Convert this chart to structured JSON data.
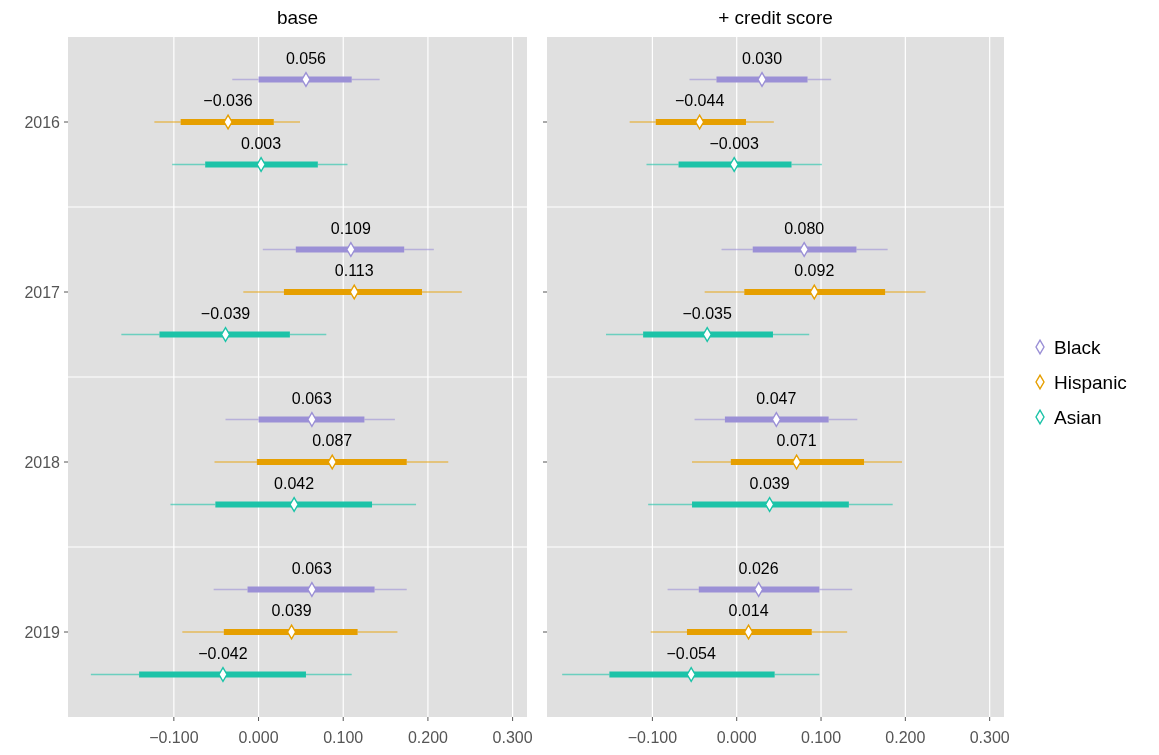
{
  "chart_data": [
    {
      "type": "box",
      "title": "base",
      "orientation": "horizontal",
      "categories": [
        "2016",
        "2017",
        "2018",
        "2019"
      ],
      "xlim": [
        -0.225,
        0.317
      ],
      "xticks": [
        {
          "value": -0.1,
          "label": "−0.100"
        },
        {
          "value": 0,
          "label": "0.000"
        },
        {
          "value": 0.1,
          "label": "0.100"
        },
        {
          "value": 0.2,
          "label": "0.200"
        },
        {
          "value": 0.3,
          "label": "0.300"
        }
      ],
      "grid": "x",
      "marker": "diamond",
      "series": [
        {
          "color": "#9b90d6",
          "value_labels": [
            "0.056",
            "0.109",
            "0.063",
            "0.063"
          ],
          "boxes": [
            {
              "low": -0.031,
              "q1": 0.0,
              "median": 0.056,
              "q3": 0.11,
              "high": 0.143
            },
            {
              "low": 0.005,
              "q1": 0.044,
              "median": 0.109,
              "q3": 0.172,
              "high": 0.207
            },
            {
              "low": -0.039,
              "q1": 0.0,
              "median": 0.063,
              "q3": 0.125,
              "high": 0.161
            },
            {
              "low": -0.053,
              "q1": -0.013,
              "median": 0.063,
              "q3": 0.137,
              "high": 0.175
            }
          ]
        },
        {
          "color": "#e69f00",
          "value_labels": [
            "−0.036",
            "0.113",
            "0.087",
            "0.039"
          ],
          "boxes": [
            {
              "low": -0.123,
              "q1": -0.092,
              "median": -0.036,
              "q3": 0.018,
              "high": 0.049
            },
            {
              "low": -0.018,
              "q1": 0.03,
              "median": 0.113,
              "q3": 0.193,
              "high": 0.24
            },
            {
              "low": -0.052,
              "q1": -0.002,
              "median": 0.087,
              "q3": 0.175,
              "high": 0.224
            },
            {
              "low": -0.09,
              "q1": -0.041,
              "median": 0.039,
              "q3": 0.117,
              "high": 0.164
            }
          ]
        },
        {
          "color": "#1cc3a8",
          "value_labels": [
            "0.003",
            "−0.039",
            "0.042",
            "−0.042"
          ],
          "boxes": [
            {
              "low": -0.102,
              "q1": -0.063,
              "median": 0.003,
              "q3": 0.07,
              "high": 0.105
            },
            {
              "low": -0.162,
              "q1": -0.117,
              "median": -0.039,
              "q3": 0.037,
              "high": 0.08
            },
            {
              "low": -0.104,
              "q1": -0.051,
              "median": 0.042,
              "q3": 0.134,
              "high": 0.186
            },
            {
              "low": -0.198,
              "q1": -0.141,
              "median": -0.042,
              "q3": 0.056,
              "high": 0.11
            }
          ]
        }
      ]
    },
    {
      "type": "box",
      "title": "+ credit score",
      "orientation": "horizontal",
      "categories": [
        "2016",
        "2017",
        "2018",
        "2019"
      ],
      "xlim": [
        -0.225,
        0.317
      ],
      "xticks": [
        {
          "value": -0.1,
          "label": "−0.100"
        },
        {
          "value": 0,
          "label": "0.000"
        },
        {
          "value": 0.1,
          "label": "0.100"
        },
        {
          "value": 0.2,
          "label": "0.200"
        },
        {
          "value": 0.3,
          "label": "0.300"
        }
      ],
      "grid": "x",
      "legend": "right",
      "tick_labels": "x",
      "marker": "diamond",
      "series": [
        {
          "name": "Black",
          "color": "#9b90d6",
          "value_labels": [
            "0.030",
            "0.080",
            "0.047",
            "0.026"
          ],
          "boxes": [
            {
              "low": -0.056,
              "q1": -0.024,
              "median": 0.03,
              "q3": 0.084,
              "high": 0.112
            },
            {
              "low": -0.018,
              "q1": 0.019,
              "median": 0.08,
              "q3": 0.142,
              "high": 0.179
            },
            {
              "low": -0.05,
              "q1": -0.014,
              "median": 0.047,
              "q3": 0.109,
              "high": 0.143
            },
            {
              "low": -0.082,
              "q1": -0.045,
              "median": 0.026,
              "q3": 0.098,
              "high": 0.137
            }
          ]
        },
        {
          "name": "Hispanic",
          "color": "#e69f00",
          "value_labels": [
            "−0.044",
            "0.092",
            "0.071",
            "0.014"
          ],
          "boxes": [
            {
              "low": -0.127,
              "q1": -0.096,
              "median": -0.044,
              "q3": 0.011,
              "high": 0.044
            },
            {
              "low": -0.038,
              "q1": 0.009,
              "median": 0.092,
              "q3": 0.176,
              "high": 0.224
            },
            {
              "low": -0.053,
              "q1": -0.007,
              "median": 0.071,
              "q3": 0.151,
              "high": 0.196
            },
            {
              "low": -0.102,
              "q1": -0.059,
              "median": 0.014,
              "q3": 0.089,
              "high": 0.131
            }
          ]
        },
        {
          "name": "Asian",
          "color": "#1cc3a8",
          "value_labels": [
            "−0.003",
            "−0.035",
            "0.039",
            "−0.054"
          ],
          "boxes": [
            {
              "low": -0.107,
              "q1": -0.069,
              "median": -0.003,
              "q3": 0.065,
              "high": 0.101
            },
            {
              "low": -0.155,
              "q1": -0.111,
              "median": -0.035,
              "q3": 0.043,
              "high": 0.086
            },
            {
              "low": -0.105,
              "q1": -0.053,
              "median": 0.039,
              "q3": 0.133,
              "high": 0.185
            },
            {
              "low": -0.207,
              "q1": -0.151,
              "median": -0.054,
              "q3": 0.045,
              "high": 0.098
            }
          ]
        }
      ]
    }
  ]
}
